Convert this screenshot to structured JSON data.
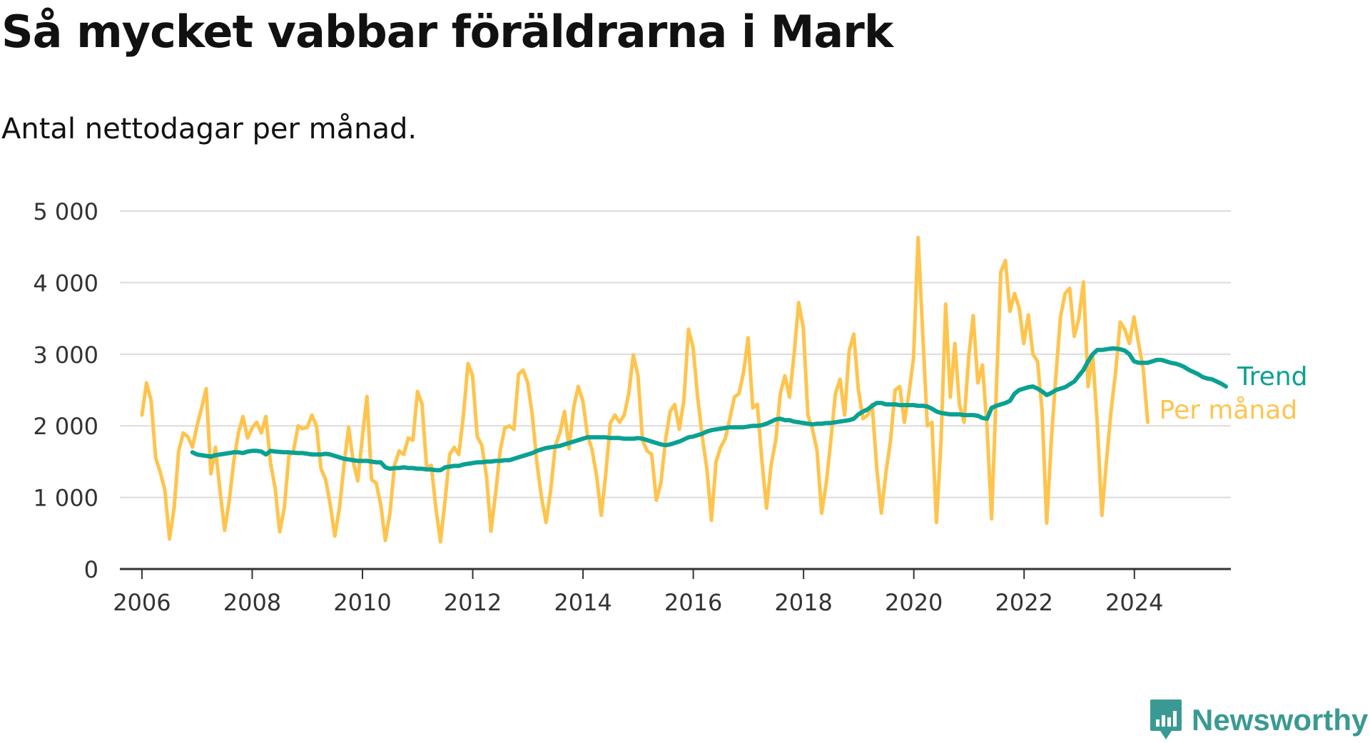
{
  "title": "Så mycket vabbar föräldrarna i Mark",
  "subtitle": "Antal nettodagar per månad.",
  "brand": "Newsworthy",
  "colors": {
    "trend": "#0aa192",
    "monthly": "#ffc44d",
    "grid": "#dcdcdc",
    "axis": "#333333",
    "brand": "#3a9a93"
  },
  "chart_data": {
    "type": "line",
    "title": "Så mycket vabbar föräldrarna i Mark",
    "subtitle": "Antal nettodagar per månad.",
    "ylim": [
      0,
      5000
    ],
    "yticks": [
      0,
      1000,
      2000,
      3000,
      4000,
      5000
    ],
    "ytick_labels": [
      "0",
      "1 000",
      "2 000",
      "3 000",
      "4 000",
      "5 000"
    ],
    "xlim": [
      2005.6,
      2025.75
    ],
    "xticks": [
      2006,
      2008,
      2010,
      2012,
      2014,
      2016,
      2018,
      2020,
      2022,
      2024
    ],
    "xtick_labels": [
      "2006",
      "2008",
      "2010",
      "2012",
      "2014",
      "2016",
      "2018",
      "2020",
      "2022",
      "2024"
    ],
    "grid": true,
    "legend": "right end labels",
    "series": [
      {
        "name": "Per månad",
        "color": "#ffc44d",
        "start_year": 2006.0,
        "step": 0.0833,
        "values": [
          2150,
          2600,
          2350,
          1550,
          1350,
          1100,
          420,
          850,
          1650,
          1900,
          1850,
          1700,
          2000,
          2250,
          2520,
          1330,
          1700,
          1100,
          540,
          950,
          1500,
          1900,
          2130,
          1830,
          1970,
          2050,
          1900,
          2130,
          1480,
          1130,
          520,
          850,
          1580,
          1650,
          2000,
          1960,
          1980,
          2150,
          2000,
          1400,
          1250,
          900,
          460,
          850,
          1450,
          1980,
          1500,
          1230,
          1850,
          2410,
          1250,
          1200,
          900,
          400,
          780,
          1450,
          1650,
          1600,
          1830,
          1800,
          2480,
          2300,
          1400,
          1450,
          850,
          380,
          950,
          1600,
          1700,
          1600,
          2150,
          2870,
          2700,
          1850,
          1730,
          1300,
          530,
          1050,
          1650,
          1970,
          2000,
          1950,
          2720,
          2780,
          2600,
          2150,
          1480,
          1000,
          650,
          1100,
          1720,
          1900,
          2200,
          1680,
          2260,
          2550,
          2350,
          1870,
          1670,
          1300,
          750,
          1330,
          2040,
          2150,
          2050,
          2150,
          2450,
          2990,
          2700,
          1800,
          1650,
          1600,
          960,
          1200,
          1800,
          2200,
          2300,
          1950,
          2350,
          3350,
          3100,
          2400,
          1850,
          1400,
          680,
          1500,
          1700,
          1820,
          2100,
          2400,
          2450,
          2750,
          3230,
          2250,
          2300,
          1500,
          850,
          1450,
          1800,
          2450,
          2700,
          2400,
          3000,
          3720,
          3370,
          2150,
          1950,
          1650,
          780,
          1200,
          1800,
          2450,
          2650,
          2150,
          3050,
          3280,
          2500,
          2100,
          2150,
          2300,
          1400,
          780,
          1350,
          1800,
          2500,
          2550,
          2050,
          2450,
          2950,
          4630,
          3300,
          2000,
          2050,
          650,
          1800,
          3700,
          2400,
          3150,
          2300,
          2050,
          2950,
          3540,
          2600,
          2850,
          2000,
          700,
          2450,
          4150,
          4310,
          3600,
          3850,
          3650,
          3150,
          3550,
          3000,
          2900,
          2200,
          640,
          1800,
          2700,
          3520,
          3850,
          3920,
          3250,
          3500,
          4010,
          2550,
          3000,
          2050,
          750,
          1500,
          2200,
          2750,
          3450,
          3350,
          3150,
          3520,
          3150,
          2800,
          2050
        ]
      },
      {
        "name": "Trend",
        "color": "#0aa192",
        "start_year": 2006.9167,
        "step": 0.0833,
        "values": [
          1630,
          1600,
          1590,
          1580,
          1570,
          1590,
          1600,
          1610,
          1620,
          1630,
          1630,
          1620,
          1640,
          1650,
          1650,
          1640,
          1600,
          1650,
          1640,
          1635,
          1630,
          1630,
          1625,
          1620,
          1620,
          1610,
          1600,
          1600,
          1600,
          1610,
          1600,
          1580,
          1560,
          1540,
          1530,
          1520,
          1510,
          1510,
          1510,
          1500,
          1490,
          1490,
          1420,
          1400,
          1410,
          1410,
          1420,
          1410,
          1410,
          1400,
          1400,
          1390,
          1390,
          1380,
          1380,
          1420,
          1430,
          1440,
          1440,
          1460,
          1470,
          1480,
          1490,
          1490,
          1500,
          1500,
          1510,
          1510,
          1520,
          1520,
          1540,
          1560,
          1580,
          1600,
          1620,
          1650,
          1670,
          1690,
          1700,
          1710,
          1720,
          1740,
          1760,
          1780,
          1800,
          1820,
          1840,
          1840,
          1840,
          1840,
          1840,
          1830,
          1830,
          1830,
          1820,
          1820,
          1820,
          1830,
          1820,
          1800,
          1780,
          1760,
          1740,
          1730,
          1740,
          1760,
          1780,
          1810,
          1840,
          1850,
          1870,
          1890,
          1920,
          1940,
          1950,
          1960,
          1970,
          1980,
          1980,
          1980,
          1980,
          1990,
          2000,
          2000,
          2010,
          2030,
          2060,
          2090,
          2100,
          2080,
          2080,
          2060,
          2050,
          2040,
          2030,
          2020,
          2030,
          2030,
          2040,
          2040,
          2050,
          2060,
          2070,
          2080,
          2100,
          2160,
          2200,
          2230,
          2280,
          2320,
          2320,
          2300,
          2300,
          2300,
          2290,
          2290,
          2290,
          2290,
          2280,
          2280,
          2270,
          2240,
          2200,
          2180,
          2170,
          2160,
          2160,
          2160,
          2150,
          2150,
          2150,
          2140,
          2110,
          2100,
          2250,
          2280,
          2300,
          2320,
          2350,
          2450,
          2500,
          2520,
          2540,
          2550,
          2520,
          2480,
          2430,
          2460,
          2500,
          2520,
          2540,
          2580,
          2620,
          2700,
          2780,
          2900,
          3000,
          3060,
          3060,
          3070,
          3080,
          3080,
          3070,
          3050,
          3000,
          2900,
          2880,
          2880,
          2880,
          2900,
          2920,
          2920,
          2900,
          2880,
          2870,
          2850,
          2820,
          2780,
          2750,
          2720,
          2680,
          2660,
          2650,
          2620,
          2590,
          2550
        ]
      }
    ]
  }
}
